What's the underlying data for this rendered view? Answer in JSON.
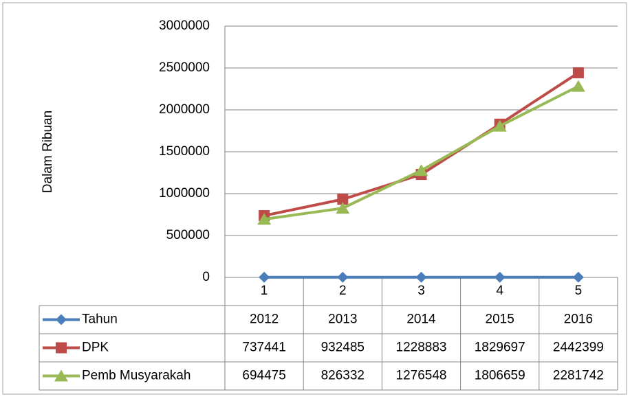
{
  "chart_data": {
    "type": "line",
    "y_label": "Dalam Ribuan",
    "categories": [
      "1",
      "2",
      "3",
      "4",
      "5"
    ],
    "series": [
      {
        "name": "Tahun",
        "color": "#4a7ebb",
        "marker": "diamond",
        "values": [
          2012,
          2013,
          2014,
          2015,
          2016
        ]
      },
      {
        "name": "DPK",
        "color": "#be4b48",
        "marker": "square",
        "values": [
          737441,
          932485,
          1228883,
          1829697,
          2442399
        ]
      },
      {
        "name": "Pemb Musyarakah",
        "color": "#98b954",
        "marker": "triangle",
        "values": [
          694475,
          826332,
          1276548,
          1806659,
          2281742
        ]
      }
    ],
    "ylim": [
      0,
      3000000
    ],
    "yticks": [
      0,
      500000,
      1000000,
      1500000,
      2000000,
      2500000,
      3000000
    ],
    "grid": true,
    "data_table": true
  }
}
